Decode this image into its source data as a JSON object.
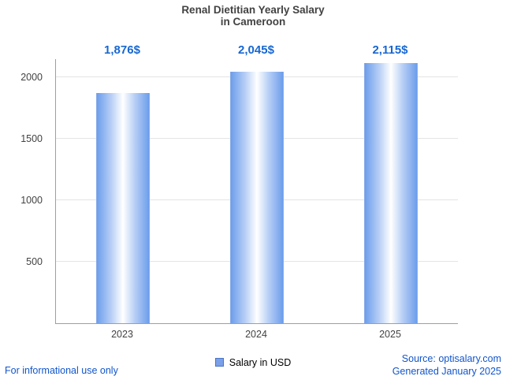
{
  "title": {
    "line1": "Renal Dietitian Yearly Salary",
    "line2": "in Cameroon"
  },
  "chart_data": {
    "type": "bar",
    "title": "Renal Dietitian Yearly Salary in Cameroon",
    "categories": [
      "2023",
      "2024",
      "2025"
    ],
    "values": [
      1876,
      2045,
      2115
    ],
    "value_labels": [
      "1,876$",
      "2,045$",
      "2,115$"
    ],
    "xlabel": "",
    "ylabel": "",
    "yticks": [
      500,
      1000,
      1500,
      2000
    ],
    "ylim": [
      0,
      2150
    ],
    "grid": true,
    "legend": {
      "label": "Salary in USD",
      "position": "bottom"
    },
    "colors": {
      "bar_edge": "#6d9eeb",
      "bar_center": "#ffffff",
      "value_label": "#1767d2",
      "axis": "#9e9e9e",
      "gridline": "#e4e4e4"
    }
  },
  "footer": {
    "left": "For informational use only",
    "source": "Source: optisalary.com",
    "generated": "Generated January 2025"
  }
}
